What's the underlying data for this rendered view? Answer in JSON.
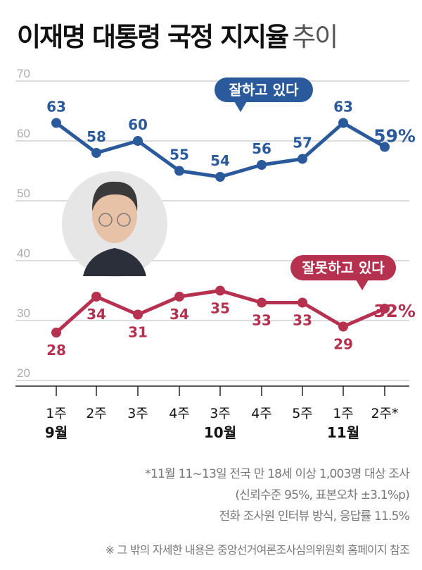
{
  "title": {
    "bold": "이재명 대통령 국정 지지율",
    "light": "추이"
  },
  "chart_data": {
    "type": "line",
    "ylim": [
      20,
      70
    ],
    "yticks": [
      70,
      60,
      50,
      40,
      30,
      20
    ],
    "grid": true,
    "categories": [
      "1주",
      "2주",
      "3주",
      "4주",
      "3주",
      "4주",
      "5주",
      "1주",
      "2주*"
    ],
    "month_labels": [
      {
        "label": "9월",
        "index": 0
      },
      {
        "label": "10월",
        "index": 4
      },
      {
        "label": "11월",
        "index": 7
      }
    ],
    "series": [
      {
        "name": "잘하고 있다",
        "color": "#2b5a9c",
        "values": [
          63,
          58,
          60,
          55,
          54,
          56,
          57,
          63,
          59
        ],
        "last_label": "59%"
      },
      {
        "name": "잘못하고 있다",
        "color": "#b5314f",
        "values": [
          28,
          34,
          31,
          34,
          35,
          33,
          33,
          29,
          32
        ],
        "last_label": "32%"
      }
    ]
  },
  "notes": [
    "*11월 11~13일 전국 만 18세 이상 1,003명 대상 조사",
    "(신뢰수준 95%, 표본오차 ±3.1%p)",
    "전화 조사원 인터뷰 방식, 응답률 11.5%"
  ],
  "footnote": "※ 그 밖의 자세한 내용은 중앙선거여론조사심의위원회 홈페이지 참조"
}
